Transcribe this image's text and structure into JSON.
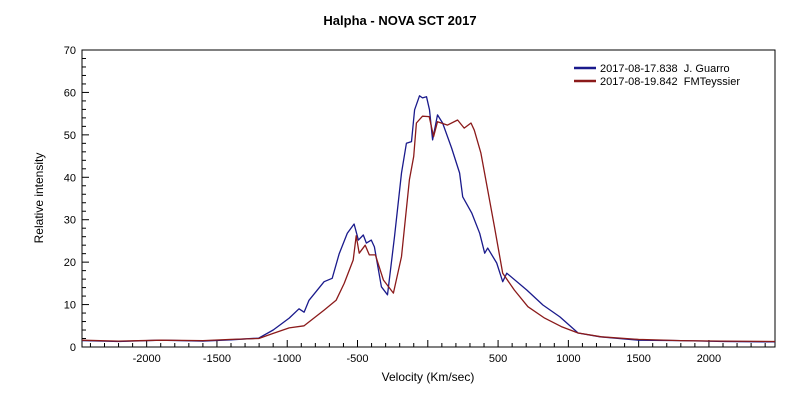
{
  "chart_data": {
    "type": "line",
    "title": "Halpha - NOVA SCT 2017",
    "xlabel": "Velocity (Km/sec)",
    "ylabel": "Relative intensity",
    "xlim": [
      -2460,
      2470
    ],
    "ylim": [
      0,
      70
    ],
    "xticks": [
      -2000,
      -1500,
      -1000,
      -500,
      500,
      1000,
      1500,
      2000
    ],
    "yticks": [
      0,
      10,
      20,
      30,
      40,
      50,
      60,
      70
    ],
    "grid": false,
    "legend_position": "top-right",
    "series": [
      {
        "name": "2017-08-17.838  J. Guarro",
        "color": "#1a1a8c",
        "points": [
          [
            -2460,
            1.5
          ],
          [
            -2200,
            1.3
          ],
          [
            -1900,
            1.6
          ],
          [
            -1600,
            1.4
          ],
          [
            -1400,
            1.7
          ],
          [
            -1202,
            2.1
          ],
          [
            -1100,
            4
          ],
          [
            -986,
            6.8
          ],
          [
            -916,
            9.0
          ],
          [
            -880,
            8.2
          ],
          [
            -845,
            11
          ],
          [
            -738,
            15.4
          ],
          [
            -680,
            16.2
          ],
          [
            -630,
            22
          ],
          [
            -573,
            26.8
          ],
          [
            -524,
            29
          ],
          [
            -494,
            25.2
          ],
          [
            -459,
            26.4
          ],
          [
            -437,
            24.5
          ],
          [
            -402,
            25.2
          ],
          [
            -380,
            23.6
          ],
          [
            -330,
            14.2
          ],
          [
            -287,
            12.3
          ],
          [
            -237,
            26
          ],
          [
            -187,
            41
          ],
          [
            -152,
            48
          ],
          [
            -116,
            48.4
          ],
          [
            -94,
            55.9
          ],
          [
            -59,
            59.2
          ],
          [
            -38,
            58.7
          ],
          [
            -9,
            59
          ],
          [
            12,
            55.9
          ],
          [
            34,
            48.8
          ],
          [
            69,
            54.7
          ],
          [
            105,
            52.8
          ],
          [
            169,
            46.9
          ],
          [
            226,
            41
          ],
          [
            248,
            35.4
          ],
          [
            312,
            31.6
          ],
          [
            369,
            26.8
          ],
          [
            405,
            22.1
          ],
          [
            426,
            23.3
          ],
          [
            490,
            19.8
          ],
          [
            533,
            15.4
          ],
          [
            562,
            17.4
          ],
          [
            705,
            13.4
          ],
          [
            819,
            9.9
          ],
          [
            940,
            7.1
          ],
          [
            1069,
            3.3
          ],
          [
            1226,
            2.4
          ],
          [
            1500,
            1.6
          ],
          [
            1800,
            1.5
          ],
          [
            2100,
            1.3
          ],
          [
            2470,
            1.2
          ]
        ]
      },
      {
        "name": "2017-08-19.842  FMTeyssier",
        "color": "#8b1a1a",
        "points": [
          [
            -2460,
            1.6
          ],
          [
            -2200,
            1.4
          ],
          [
            -1900,
            1.6
          ],
          [
            -1600,
            1.5
          ],
          [
            -1400,
            1.8
          ],
          [
            -1202,
            2.0
          ],
          [
            -1100,
            3.2
          ],
          [
            -986,
            4.5
          ],
          [
            -880,
            5
          ],
          [
            -738,
            8.7
          ],
          [
            -652,
            11
          ],
          [
            -595,
            15
          ],
          [
            -531,
            20.5
          ],
          [
            -509,
            26.2
          ],
          [
            -488,
            22.1
          ],
          [
            -445,
            24
          ],
          [
            -416,
            21.7
          ],
          [
            -373,
            21.7
          ],
          [
            -316,
            15.8
          ],
          [
            -245,
            12.7
          ],
          [
            -187,
            21.3
          ],
          [
            -131,
            39.4
          ],
          [
            -100,
            44.9
          ],
          [
            -81,
            52.8
          ],
          [
            -38,
            54.4
          ],
          [
            10,
            54.3
          ],
          [
            41,
            49.6
          ],
          [
            69,
            53.1
          ],
          [
            140,
            52.3
          ],
          [
            212,
            53.5
          ],
          [
            259,
            51.6
          ],
          [
            307,
            52.8
          ],
          [
            331,
            51.1
          ],
          [
            378,
            45.7
          ],
          [
            426,
            37
          ],
          [
            474,
            28.4
          ],
          [
            533,
            17.4
          ],
          [
            616,
            13.4
          ],
          [
            712,
            9.5
          ],
          [
            831,
            6.8
          ],
          [
            950,
            4.8
          ],
          [
            1069,
            3.3
          ],
          [
            1235,
            2.4
          ],
          [
            1500,
            1.8
          ],
          [
            1800,
            1.5
          ],
          [
            2100,
            1.4
          ],
          [
            2470,
            1.3
          ]
        ]
      }
    ]
  }
}
